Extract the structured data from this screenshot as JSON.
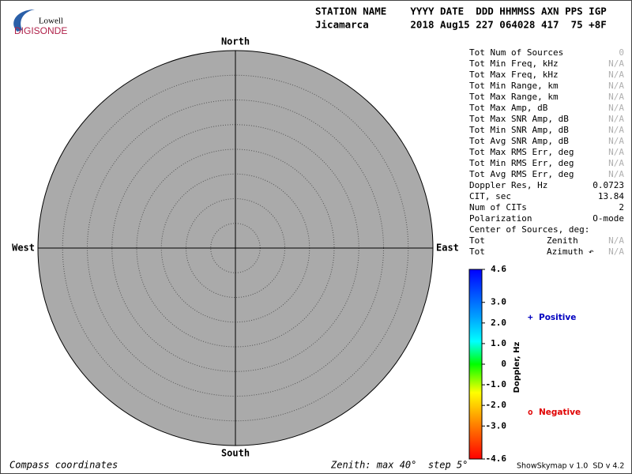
{
  "logo": {
    "top": "Lowell",
    "bottom": "DIGISONDE"
  },
  "header": {
    "labels": "STATION NAME    YYYY DATE  DDD HHMMSS AXN PPS IGP",
    "values": "Jicamarca       2018 Aug15 227 064028 417  75 +8F"
  },
  "compass": {
    "north": "North",
    "south": "South",
    "east": "East",
    "west": "West"
  },
  "stats": [
    {
      "label": "Tot Num of Sources",
      "value": "0",
      "color": "#b0b0b0"
    },
    {
      "label": "Tot Min Freq, kHz",
      "value": "N/A",
      "color": "#b0b0b0"
    },
    {
      "label": "Tot Max Freq, kHz",
      "value": "N/A",
      "color": "#b0b0b0"
    },
    {
      "label": "Tot Min Range, km",
      "value": "N/A",
      "color": "#b0b0b0"
    },
    {
      "label": "Tot Max Range, km",
      "value": "N/A",
      "color": "#b0b0b0"
    },
    {
      "label": "Tot Max Amp, dB",
      "value": "N/A",
      "color": "#b0b0b0"
    },
    {
      "label": "Tot Max SNR Amp, dB",
      "value": "N/A",
      "color": "#b0b0b0"
    },
    {
      "label": "Tot Min SNR Amp, dB",
      "value": "N/A",
      "color": "#b0b0b0"
    },
    {
      "label": "Tot Avg SNR Amp, dB",
      "value": "N/A",
      "color": "#b0b0b0"
    },
    {
      "label": "Tot Max RMS Err, deg",
      "value": "N/A",
      "color": "#b0b0b0"
    },
    {
      "label": "Tot Min RMS Err, deg",
      "value": "N/A",
      "color": "#b0b0b0"
    },
    {
      "label": "Tot Avg RMS Err, deg",
      "value": "N/A",
      "color": "#b0b0b0"
    },
    {
      "label": "Doppler Res, Hz",
      "value": "0.0723",
      "color": "#000000"
    },
    {
      "label": "CIT, sec",
      "value": "13.84",
      "color": "#000000"
    },
    {
      "label": "Num of CITs",
      "value": "2",
      "color": "#000000"
    },
    {
      "label": "Polarization",
      "value": "O-mode",
      "color": "#000000"
    },
    {
      "label": "Center of Sources, deg:"
    },
    {
      "label": "Tot",
      "sub": "Zenith",
      "value": "N/A",
      "color": "#b0b0b0"
    },
    {
      "label": "Tot",
      "sub": "Azimuth ↶",
      "value": "N/A",
      "color": "#b0b0b0"
    }
  ],
  "colorbar": {
    "title": "Doppler, Hz",
    "ticks": [
      4.6,
      {
        "value": 3,
        "label": "3.0"
      },
      {
        "value": 2,
        "label": "2.0"
      },
      {
        "value": 1,
        "label": "1.0"
      },
      0,
      {
        "value": -1,
        "label": "-1.0"
      },
      {
        "value": -2,
        "label": "-2.0"
      },
      {
        "value": -3,
        "label": "-3.0"
      },
      -4.6
    ]
  },
  "legend": {
    "positive": {
      "symbol": "+",
      "label": "Positive",
      "color": "#0000c0"
    },
    "negative": {
      "symbol": "o",
      "label": "Negative",
      "color": "#e00000"
    }
  },
  "footer": {
    "left": "Compass coordinates",
    "middle": "Zenith: max 40°  step 5°",
    "right": "ShowSkymap v 1.0  SD v 4.2"
  }
}
